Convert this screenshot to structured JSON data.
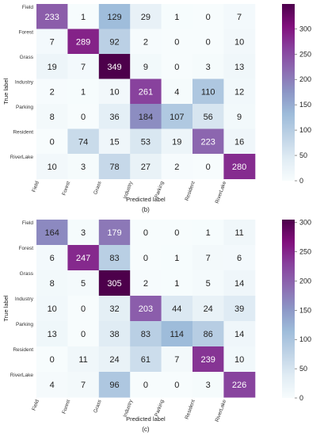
{
  "chart_data": [
    {
      "type": "heatmap",
      "panel_label": "(b)",
      "xlabel": "Predicted label",
      "ylabel": "True label",
      "row_labels": [
        "Field",
        "Forest",
        "Grass",
        "Industry",
        "Parking",
        "Resident",
        "RiverLake"
      ],
      "col_labels": [
        "Field",
        "Forest",
        "Grass",
        "Industry",
        "Parking",
        "Resident",
        "RiverLake"
      ],
      "values": [
        [
          233,
          1,
          129,
          29,
          1,
          0,
          7
        ],
        [
          7,
          289,
          92,
          2,
          0,
          0,
          10
        ],
        [
          19,
          7,
          349,
          9,
          0,
          3,
          13
        ],
        [
          2,
          1,
          10,
          261,
          4,
          110,
          12
        ],
        [
          8,
          0,
          36,
          184,
          107,
          56,
          9
        ],
        [
          0,
          74,
          15,
          53,
          19,
          223,
          16
        ],
        [
          10,
          3,
          78,
          27,
          2,
          0,
          280
        ]
      ],
      "colorbar": {
        "min": 0,
        "max": 349,
        "ticks": [
          0,
          50,
          100,
          150,
          200,
          250,
          300
        ]
      }
    },
    {
      "type": "heatmap",
      "panel_label": "(c)",
      "xlabel": "Predicted label",
      "ylabel": "True label",
      "row_labels": [
        "Field",
        "Forest",
        "Grass",
        "Industry",
        "Parking",
        "Resident",
        "RiverLake"
      ],
      "col_labels": [
        "Field",
        "Forest",
        "Grass",
        "Industry",
        "Parking",
        "Resident",
        "RiverLake"
      ],
      "values": [
        [
          164,
          3,
          179,
          0,
          0,
          1,
          11
        ],
        [
          6,
          247,
          83,
          0,
          1,
          7,
          6
        ],
        [
          8,
          5,
          305,
          2,
          1,
          5,
          14
        ],
        [
          10,
          0,
          32,
          203,
          44,
          24,
          39
        ],
        [
          13,
          0,
          38,
          83,
          114,
          86,
          14
        ],
        [
          0,
          11,
          24,
          61,
          7,
          239,
          10
        ],
        [
          4,
          7,
          96,
          0,
          0,
          3,
          226
        ]
      ],
      "colorbar": {
        "min": 0,
        "max": 305,
        "ticks": [
          0,
          50,
          100,
          150,
          200,
          250,
          300
        ]
      }
    }
  ],
  "colormap": [
    "#f7fcfd",
    "#e0ecf4",
    "#bfd3e6",
    "#9ebcda",
    "#8c96c6",
    "#8c6bb1",
    "#88419d",
    "#810f7c",
    "#4d004b"
  ]
}
